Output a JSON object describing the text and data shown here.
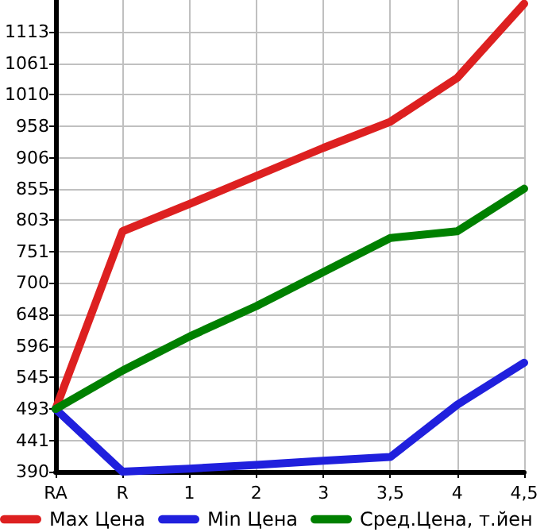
{
  "chart_data": {
    "type": "line",
    "categories": [
      "RA",
      "R",
      "1",
      "2",
      "3",
      "3,5",
      "4",
      "4,5"
    ],
    "series": [
      {
        "name": "Max Цена",
        "color": "#dd2020",
        "values": [
          493,
          785,
          830,
          876,
          922,
          965,
          1037,
          1159
        ]
      },
      {
        "name": "Min Цена",
        "color": "#2020dd",
        "values": [
          493,
          390,
          395,
          401,
          408,
          414,
          500,
          569
        ]
      },
      {
        "name": "Сред.Цена, т.йен",
        "color": "#008000",
        "values": [
          493,
          556,
          612,
          662,
          718,
          774,
          785,
          855
        ]
      }
    ],
    "ylim": [
      390,
      1165
    ],
    "yticks": [
      390,
      441,
      493,
      545,
      596,
      648,
      700,
      751,
      803,
      855,
      906,
      958,
      1010,
      1061,
      1113
    ],
    "grid": true,
    "legend": "bottom",
    "marker": "none",
    "line_style": "solid"
  }
}
